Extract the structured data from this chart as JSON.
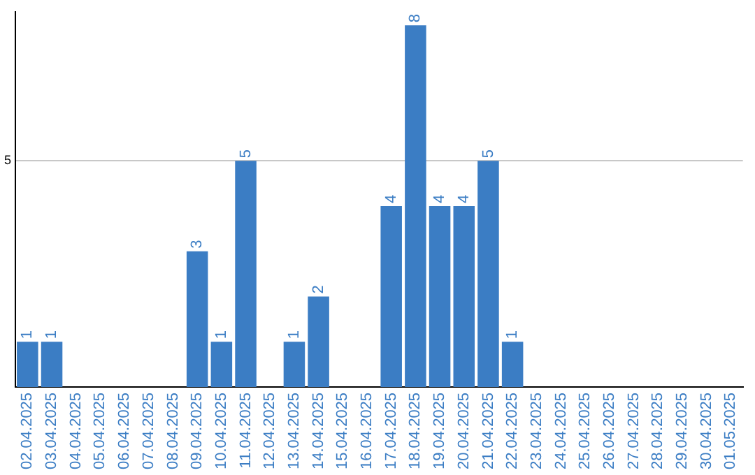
{
  "chart_data": {
    "type": "bar",
    "categories": [
      "02.04.2025",
      "03.04.2025",
      "04.04.2025",
      "05.04.2025",
      "06.04.2025",
      "07.04.2025",
      "08.04.2025",
      "09.04.2025",
      "10.04.2025",
      "11.04.2025",
      "12.04.2025",
      "13.04.2025",
      "14.04.2025",
      "15.04.2025",
      "16.04.2025",
      "17.04.2025",
      "18.04.2025",
      "19.04.2025",
      "20.04.2025",
      "21.04.2025",
      "22.04.2025",
      "23.04.2025",
      "24.04.2025",
      "25.04.2025",
      "26.04.2025",
      "27.04.2025",
      "28.04.2025",
      "29.04.2025",
      "30.04.2025",
      "01.05.2025"
    ],
    "values": [
      1,
      1,
      0,
      0,
      0,
      0,
      0,
      3,
      1,
      5,
      0,
      1,
      2,
      0,
      0,
      4,
      8,
      4,
      4,
      5,
      1,
      0,
      0,
      0,
      0,
      0,
      0,
      0,
      0,
      0
    ],
    "value_labels": [
      "1",
      "1",
      null,
      null,
      null,
      null,
      null,
      "3",
      "1",
      "5",
      null,
      "1",
      "2",
      null,
      null,
      "4",
      "8",
      "4",
      "4",
      "5",
      "1",
      null,
      null,
      null,
      null,
      null,
      null,
      null,
      null,
      null
    ],
    "color": "#3b7dc4",
    "ylim": [
      0,
      8.3
    ],
    "yticks": [
      5
    ],
    "grid": "y",
    "legend": false
  }
}
